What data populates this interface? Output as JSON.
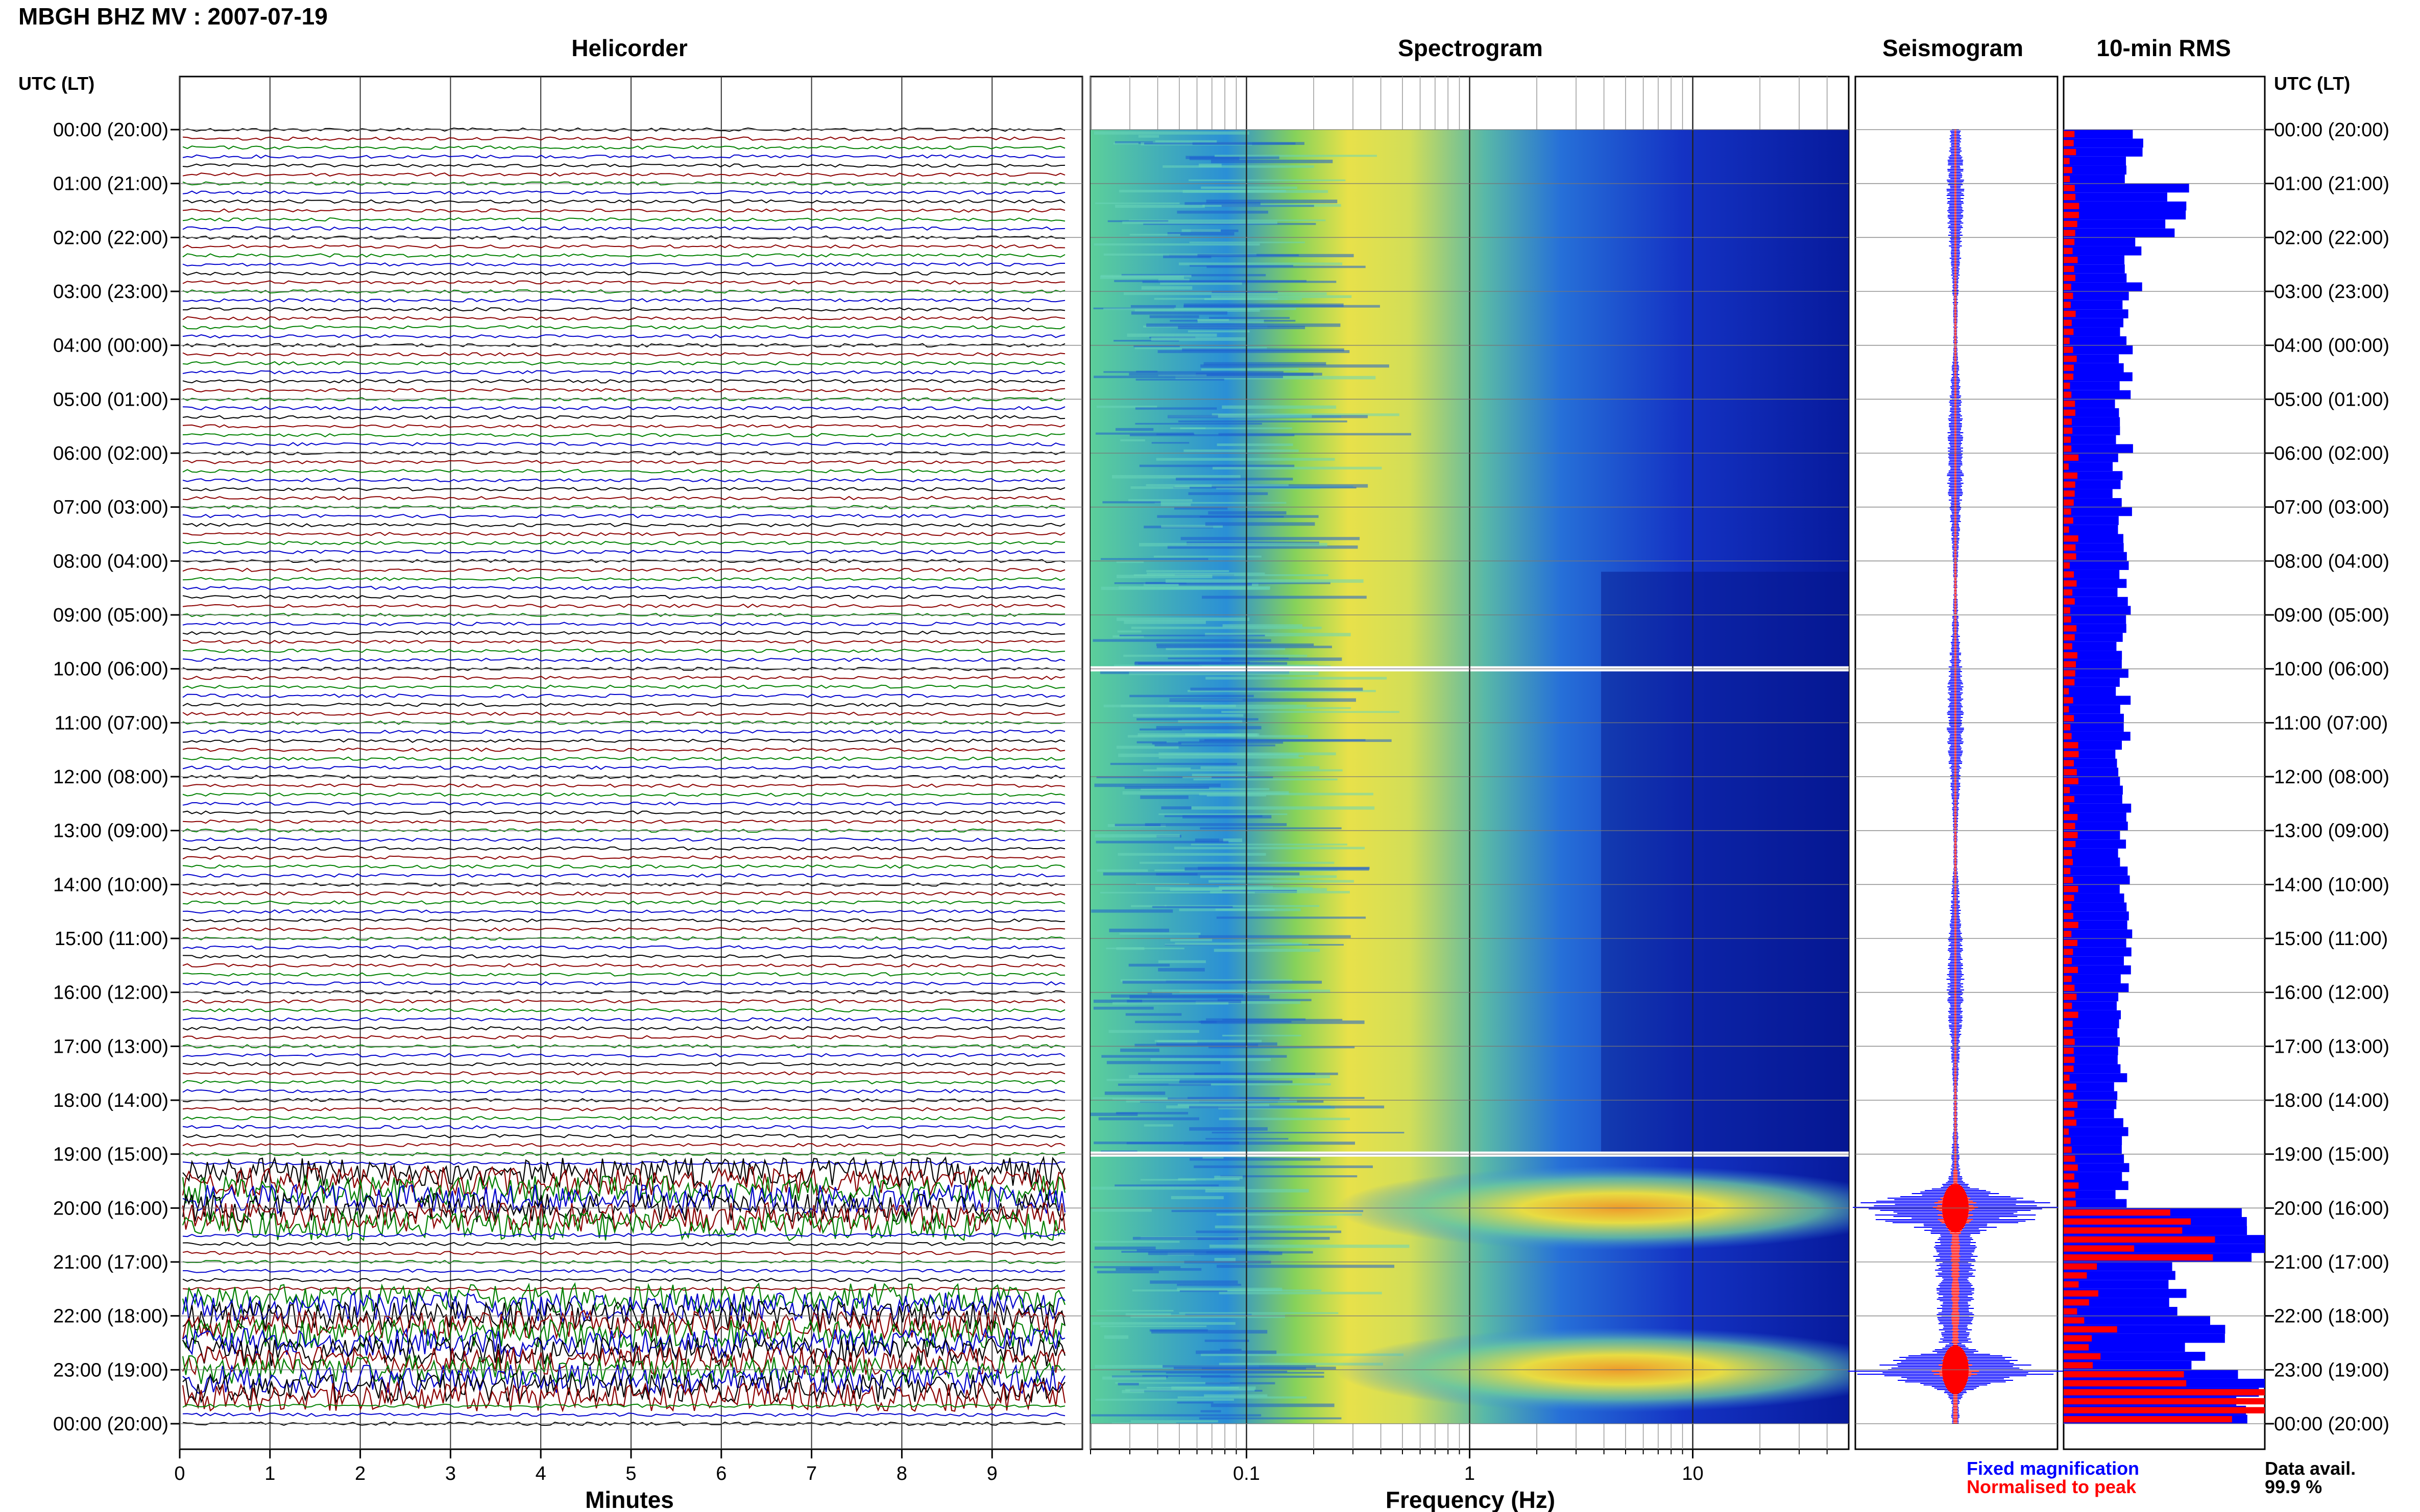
{
  "header": {
    "title": "MBGH BHZ MV : 2007-07-19",
    "panels": [
      "Helicorder",
      "Spectrogram",
      "Seismogram",
      "10-min RMS"
    ],
    "left_axis_heading": "UTC (LT)",
    "right_axis_heading": "UTC (LT)"
  },
  "footer": {
    "minutes_label": "Minutes",
    "frequency_label": "Frequency (Hz)",
    "legend_fixed": "Fixed magnification",
    "legend_normalised": "Normalised to peak",
    "data_avail_label": "Data avail.",
    "data_avail_value": "99.9 %"
  },
  "colors": {
    "trace_cycle": [
      "#000000",
      "#8b0000",
      "#008000",
      "#0000cc"
    ],
    "fixed": "#0000ff",
    "normalised": "#ff0000"
  },
  "chart_data": [
    {
      "type": "line",
      "panel": "helicorder",
      "title": "Helicorder",
      "xlabel": "Minutes",
      "x_ticks": [
        "0",
        "1",
        "2",
        "3",
        "4",
        "5",
        "6",
        "7",
        "8",
        "9"
      ],
      "xlim": [
        0,
        10
      ],
      "y_ticks": [
        "00:00 (20:00)",
        "01:00 (21:00)",
        "02:00 (22:00)",
        "03:00 (23:00)",
        "04:00 (00:00)",
        "05:00 (01:00)",
        "06:00 (02:00)",
        "07:00 (03:00)",
        "08:00 (04:00)",
        "09:00 (05:00)",
        "10:00 (06:00)",
        "11:00 (07:00)",
        "12:00 (08:00)",
        "13:00 (09:00)",
        "14:00 (10:00)",
        "15:00 (11:00)",
        "16:00 (12:00)",
        "17:00 (13:00)",
        "18:00 (14:00)",
        "19:00 (15:00)",
        "20:00 (16:00)",
        "21:00 (17:00)",
        "22:00 (18:00)",
        "23:00 (19:00)",
        "00:00 (20:00)"
      ],
      "rows_per_hour": 6,
      "high_activity_hours": [
        [
          19.2,
          20.4
        ],
        [
          21.6,
          23.6
        ]
      ]
    },
    {
      "type": "heatmap",
      "panel": "spectrogram",
      "title": "Spectrogram",
      "xlabel": "Frequency (Hz)",
      "x_scale": "log",
      "xlim": [
        0.02,
        50
      ],
      "x_ticks": [
        "0.1",
        "1",
        "10"
      ],
      "gaps_hours": [
        10.0,
        19.0
      ],
      "bright_bands_hours": [
        [
          19.5,
          20.5
        ],
        [
          22.5,
          23.5
        ]
      ]
    },
    {
      "type": "area",
      "panel": "seismogram",
      "title": "Seismogram",
      "series": [
        {
          "name": "Fixed magnification",
          "color": "#0000ff"
        },
        {
          "name": "Normalised to peak",
          "color": "#ff0000"
        }
      ],
      "bursts_hours": [
        20.0,
        23.0
      ]
    },
    {
      "type": "bar",
      "panel": "rms",
      "title": "10-min RMS",
      "bins_per_hour": 6,
      "series": [
        {
          "name": "Fixed magnification",
          "color": "#0000ff",
          "hourly_level": [
            0.35,
            0.55,
            0.35,
            0.32,
            0.3,
            0.3,
            0.28,
            0.3,
            0.3,
            0.3,
            0.3,
            0.3,
            0.3,
            0.3,
            0.3,
            0.3,
            0.28,
            0.28,
            0.28,
            0.3,
            1.0,
            0.6,
            0.7,
            1.0
          ]
        },
        {
          "name": "Normalised to peak",
          "color": "#ff0000",
          "hourly_level": [
            0.05,
            0.06,
            0.05,
            0.05,
            0.05,
            0.05,
            0.05,
            0.05,
            0.05,
            0.05,
            0.05,
            0.05,
            0.05,
            0.05,
            0.05,
            0.05,
            0.05,
            0.05,
            0.05,
            0.05,
            0.55,
            0.12,
            0.2,
            0.95
          ]
        }
      ]
    }
  ]
}
